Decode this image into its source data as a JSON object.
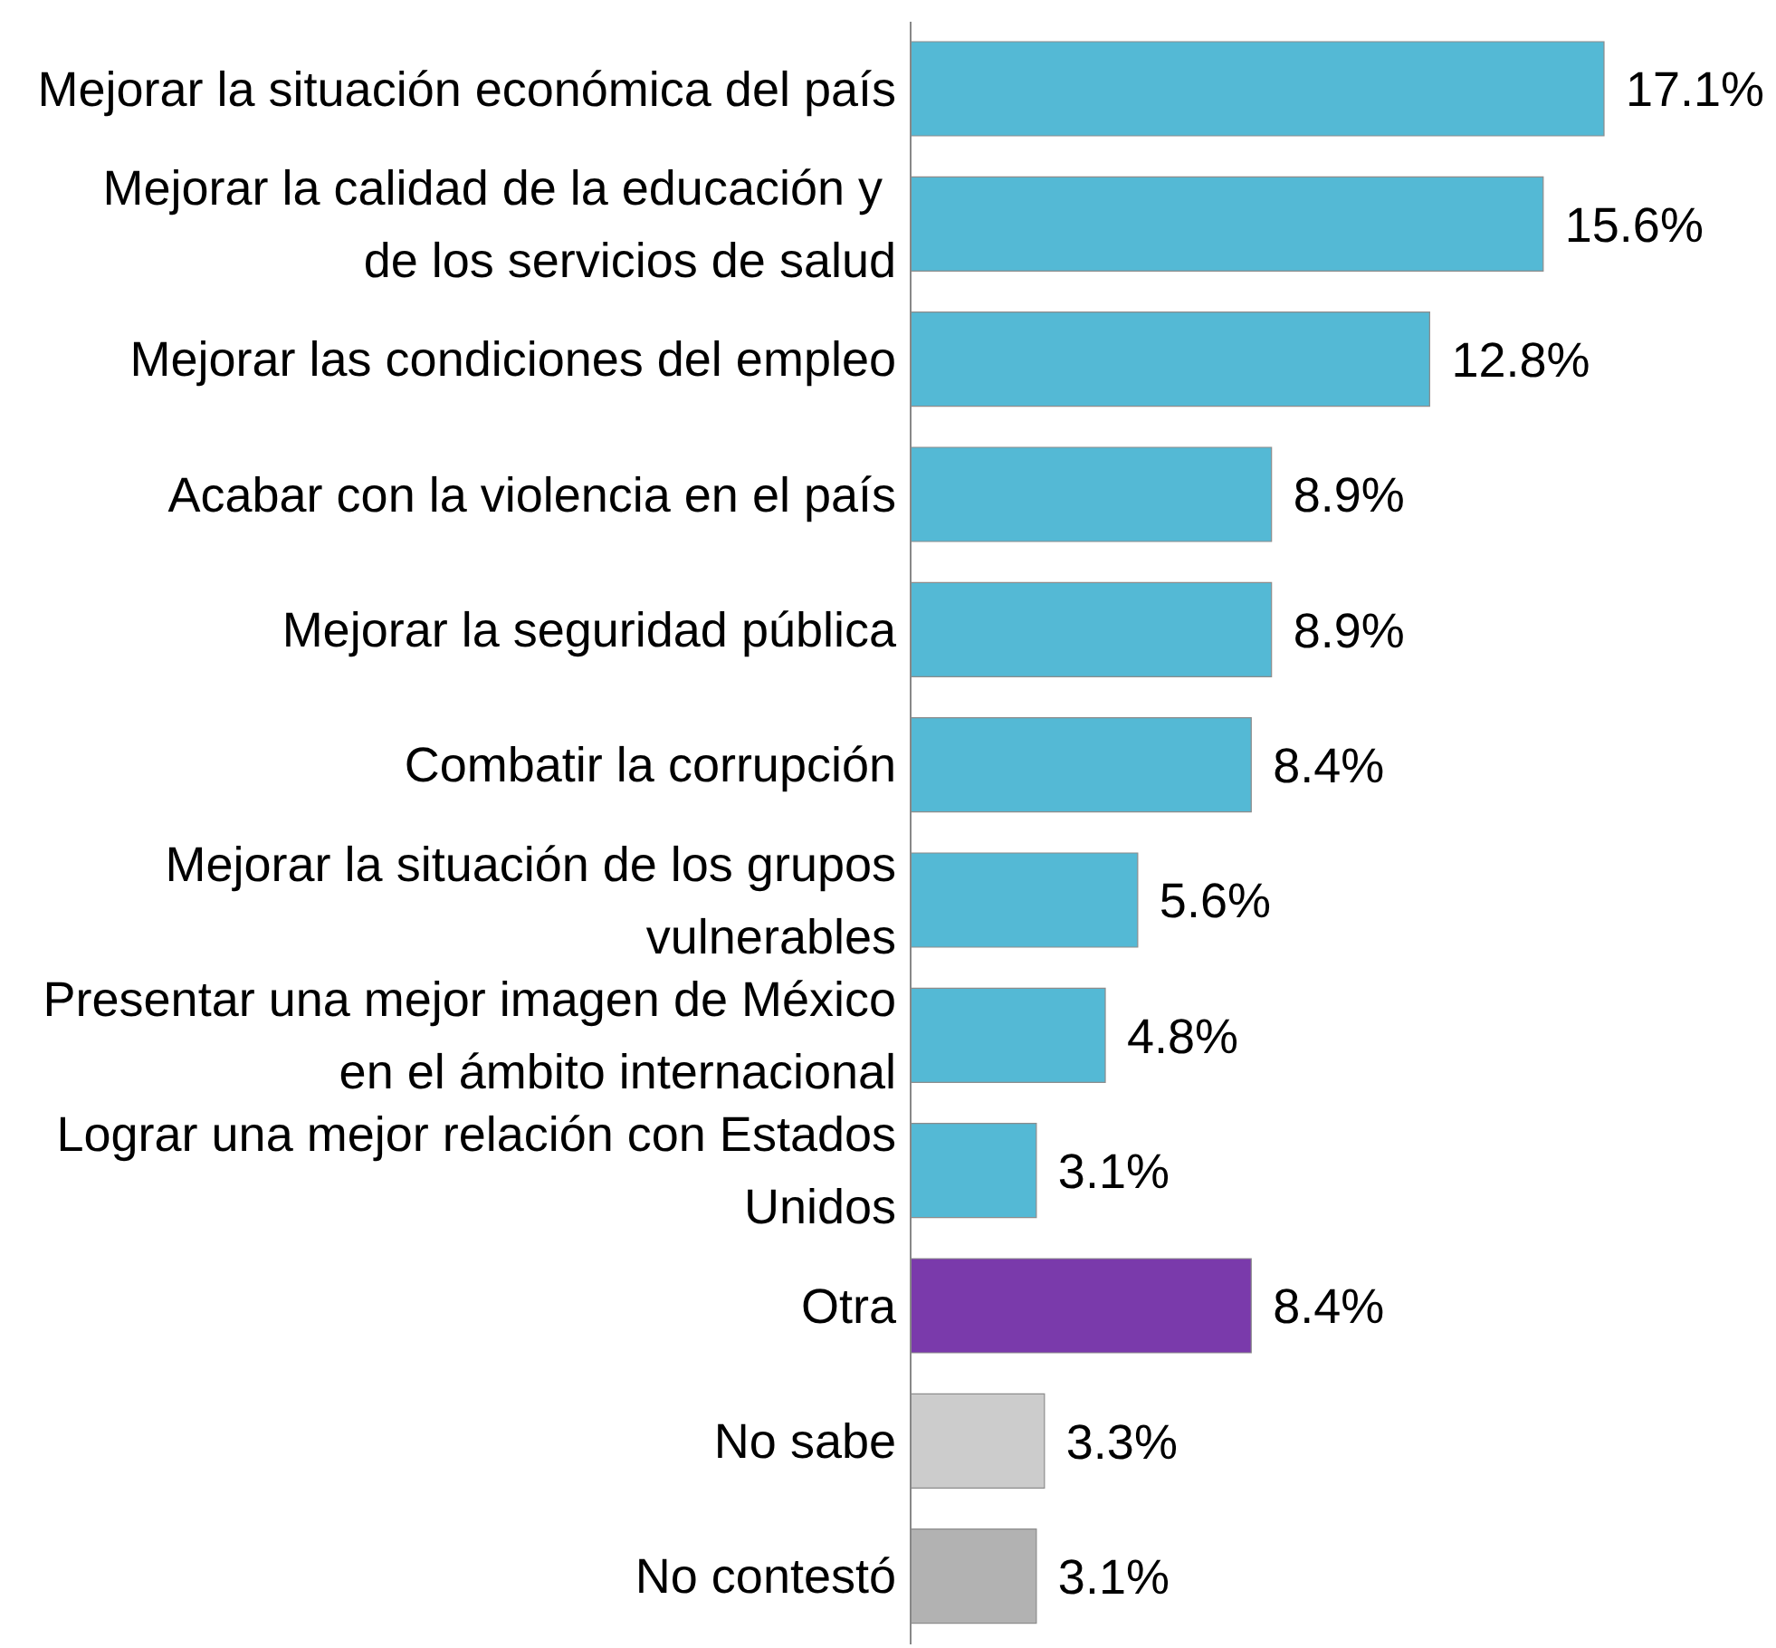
{
  "chart_data": {
    "type": "bar",
    "orientation": "horizontal",
    "categories": [
      "Mejorar la situación económica del país",
      "Mejorar la calidad de la educación y  de los servicios de salud",
      "Mejorar las condiciones del empleo",
      "Acabar con la violencia en el país",
      "Mejorar la seguridad pública",
      "Combatir la corrupción",
      "Mejorar la situación de los grupos vulnerables",
      "Presentar una mejor imagen de México en el ámbito internacional",
      "Lograr una mejor relación con Estados Unidos",
      "Otra",
      "No sabe",
      "No contestó"
    ],
    "values": [
      17.1,
      15.6,
      12.8,
      8.9,
      8.9,
      8.4,
      5.6,
      4.8,
      3.1,
      8.4,
      3.3,
      3.1
    ],
    "value_labels": [
      "17.1%",
      "15.6%",
      "12.8%",
      "8.9%",
      "8.9%",
      "8.4%",
      "5.6%",
      "4.8%",
      "3.1%",
      "8.4%",
      "3.3%",
      "3.1%"
    ],
    "colors": [
      "#54b9d5",
      "#54b9d5",
      "#54b9d5",
      "#54b9d5",
      "#54b9d5",
      "#54b9d5",
      "#54b9d5",
      "#54b9d5",
      "#54b9d5",
      "#7a3aab",
      "#cccccc",
      "#b2b2b2"
    ],
    "data_labels": false
  }
}
